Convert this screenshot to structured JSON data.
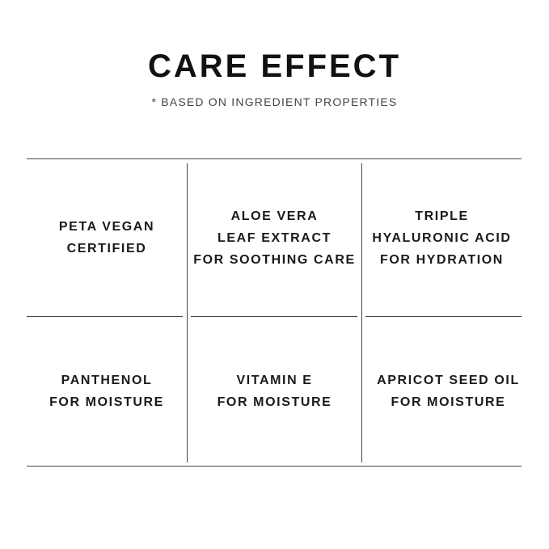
{
  "header": {
    "title": "CARE EFFECT",
    "subtitle": "* BASED ON INGREDIENT PROPERTIES"
  },
  "grid": {
    "cells": [
      {
        "lines": [
          "PETA VEGAN",
          "CERTIFIED"
        ]
      },
      {
        "lines": [
          "ALOE VERA",
          "LEAF EXTRACT",
          "FOR SOOTHING CARE"
        ]
      },
      {
        "lines": [
          "TRIPLE",
          "HYALURONIC ACID",
          "FOR HYDRATION"
        ]
      },
      {
        "lines": [
          "PANTHENOL",
          "FOR MOISTURE"
        ]
      },
      {
        "lines": [
          "VITAMIN E",
          "FOR MOISTURE"
        ]
      },
      {
        "lines": [
          "APRICOT SEED OIL",
          "FOR MOISTURE"
        ]
      }
    ]
  }
}
